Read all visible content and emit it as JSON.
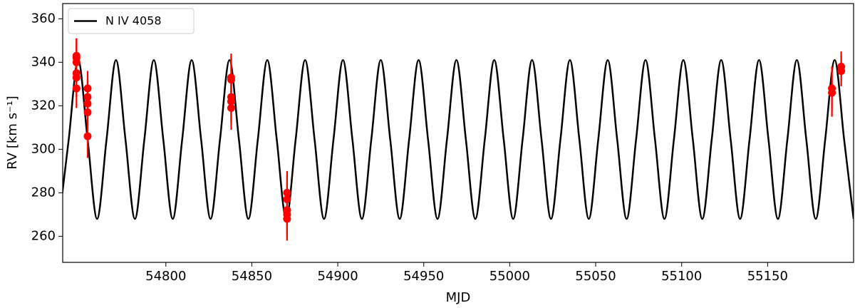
{
  "chart_data": {
    "type": "line",
    "xlabel": "MJD",
    "ylabel": "RV [km s⁻¹]",
    "xlim": [
      54740,
      55200
    ],
    "ylim": [
      248,
      367
    ],
    "xticks": [
      54800,
      54850,
      54900,
      54950,
      55000,
      55050,
      55100,
      55150
    ],
    "yticks": [
      260,
      280,
      300,
      320,
      340,
      360
    ],
    "legend": "upper left",
    "series": [
      {
        "type": "line",
        "name": "N IV 4058",
        "color": "#000000",
        "x": [
          54738,
          54743.5,
          54749,
          54754.5,
          54760,
          54765.5,
          54771,
          54776.5,
          54782,
          54787.5,
          54793,
          54798.5,
          54804,
          54809.5,
          54815,
          54820.5,
          54826,
          54831.5,
          54837,
          54842.5,
          54848,
          54853.5,
          54859,
          54864.5,
          54870,
          54875.5,
          54881,
          54886.5,
          54892,
          54897.5,
          54903,
          54908.5,
          54914,
          54919.5,
          54925,
          54930.5,
          54936,
          54941.5,
          54947,
          54952.5,
          54958,
          54963.5,
          54969,
          54974.5,
          54980,
          54985.5,
          54991,
          54996.5,
          55002,
          55007.5,
          55013,
          55018.5,
          55024,
          55029.5,
          55035,
          55040.5,
          55046,
          55051.5,
          55057,
          55062.5,
          55068,
          55073.5,
          55079,
          55084.5,
          55090,
          55095.5,
          55101,
          55106.5,
          55112,
          55117.5,
          55123,
          55128.5,
          55134,
          55139.5,
          55145,
          55150.5,
          55156,
          55161.5,
          55167,
          55172.5,
          55178,
          55183.5,
          55189,
          55194.5,
          55200
        ],
        "values": [
          268,
          304.5,
          341,
          304.5,
          268,
          304.5,
          341,
          304.5,
          268,
          304.5,
          341,
          304.5,
          268,
          304.5,
          341,
          304.5,
          268,
          304.5,
          341,
          304.5,
          268,
          304.5,
          341,
          304.5,
          268,
          304.5,
          341,
          304.5,
          268,
          304.5,
          341,
          304.5,
          268,
          304.5,
          341,
          304.5,
          268,
          304.5,
          341,
          304.5,
          268,
          304.5,
          341,
          304.5,
          268,
          304.5,
          341,
          304.5,
          268,
          304.5,
          341,
          304.5,
          268,
          304.5,
          341,
          304.5,
          268,
          304.5,
          341,
          304.5,
          268,
          304.5,
          341,
          304.5,
          268,
          304.5,
          341,
          304.5,
          268,
          304.5,
          341,
          304.5,
          268,
          304.5,
          341,
          304.5,
          268,
          304.5,
          341,
          304.5,
          268,
          304.5,
          341,
          304.5,
          268
        ]
      },
      {
        "type": "errorbar",
        "color": "#ff0000",
        "x": [
          54748,
          54748,
          54748,
          54748,
          54748,
          54748,
          54754.5,
          54754.5,
          54754.5,
          54754.5,
          54754.5,
          54838,
          54838,
          54838,
          54838,
          54838,
          54870.5,
          54870.5,
          54870.5,
          54870.5,
          54870.5,
          55187.4,
          55187.4,
          55192.8,
          55192.8
        ],
        "values": [
          343,
          342,
          340,
          335,
          333,
          328,
          328,
          324,
          321,
          317,
          306,
          333,
          332,
          324,
          322,
          319,
          280,
          277,
          272,
          270,
          268,
          328,
          326,
          338,
          336
        ],
        "errors": [
          8,
          9,
          9,
          9,
          9,
          9,
          8,
          9,
          10,
          10,
          10,
          11,
          11,
          11,
          10,
          10,
          10,
          11,
          11,
          11,
          10,
          10,
          11,
          7,
          7
        ]
      }
    ]
  }
}
